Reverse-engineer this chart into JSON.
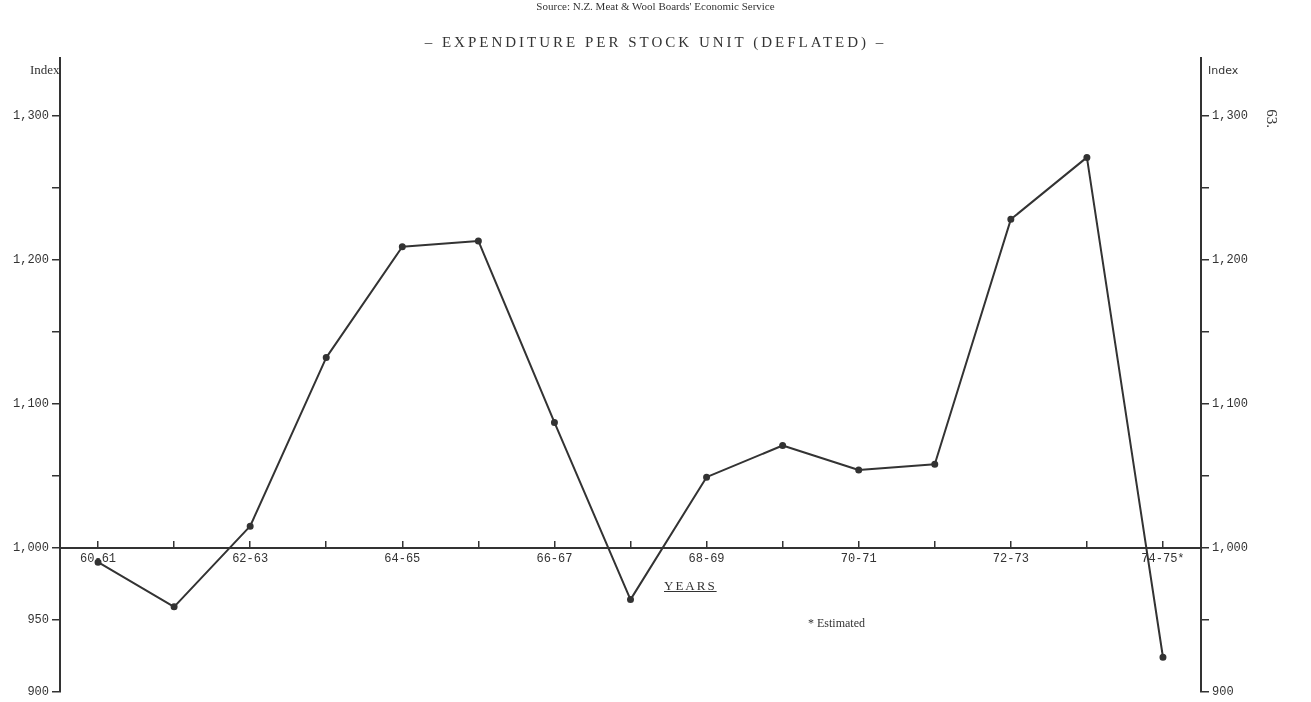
{
  "chart_data": {
    "type": "line",
    "title": "–  EXPENDITURE PER STOCK UNIT (DEFLATED)  –",
    "xlabel": "YEARS",
    "ylabel": "Index",
    "y2label": "Index",
    "annotations": [
      "Source: N.Z. Meat & Wool Boards' Economic Service",
      "* Estimated",
      "63."
    ],
    "categories": [
      "60-61",
      null,
      "62-63",
      null,
      "64-65",
      null,
      "66-67",
      null,
      "68-69",
      null,
      "70-71",
      null,
      "72-73",
      null,
      "74-75*"
    ],
    "series": [
      {
        "color": "#333333",
        "values": [
          990,
          959,
          1015,
          1132,
          1209,
          1213,
          1087,
          964,
          1049,
          1071,
          1054,
          1058,
          1228,
          1271,
          924
        ]
      }
    ],
    "ylim": [
      900,
      1340
    ],
    "yticks": [
      900,
      950,
      {
        "value": 1000,
        "label": "1,000"
      },
      {
        "value": 1050,
        "label": null
      },
      {
        "value": 1100,
        "label": "1,100"
      },
      {
        "value": 1150,
        "label": null
      },
      {
        "value": 1200,
        "label": "1,200"
      },
      {
        "value": 1250,
        "label": null
      },
      {
        "value": 1300,
        "label": "1,300"
      }
    ],
    "y2lim": [
      900,
      1340
    ],
    "y2ticks": [
      900,
      {
        "value": 950,
        "label": null
      },
      {
        "value": 1000,
        "label": "1,000"
      },
      {
        "value": 1050,
        "label": null
      },
      {
        "value": 1100,
        "label": "1,100"
      },
      {
        "value": 1150,
        "label": null
      },
      {
        "value": 1200,
        "label": "1,200"
      },
      {
        "value": 1250,
        "label": null
      },
      {
        "value": 1300,
        "label": "1,300"
      }
    ],
    "grid": false,
    "legend": false,
    "marker": "circle",
    "line_style": "solid"
  }
}
